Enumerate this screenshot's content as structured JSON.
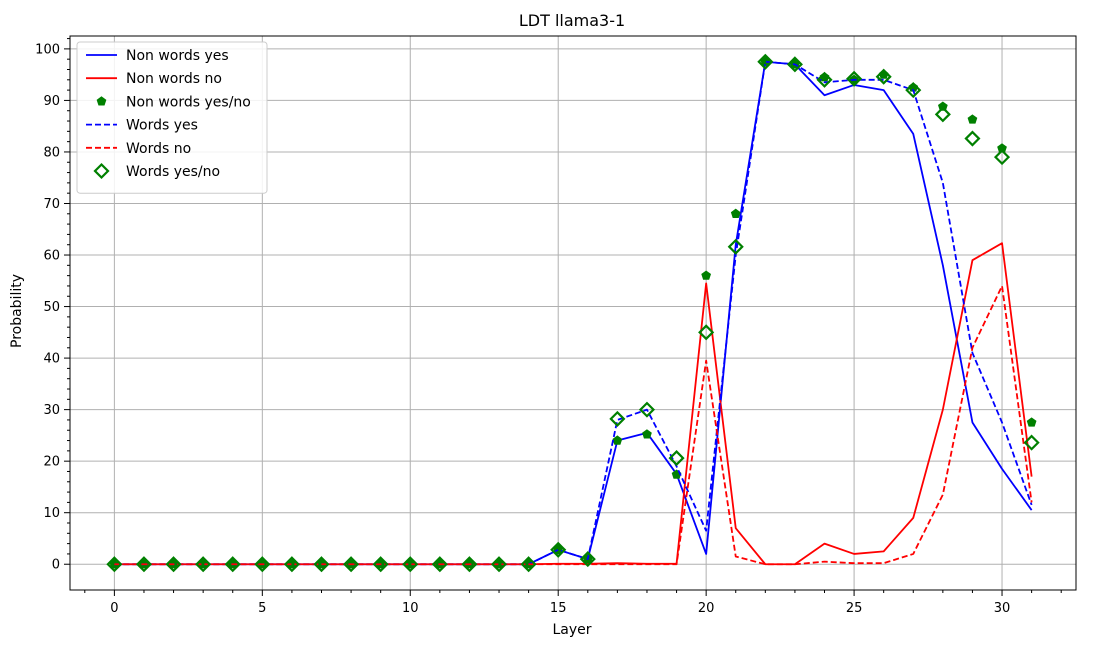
{
  "chart_data": {
    "type": "line",
    "title": "LDT llama3-1",
    "xlabel": "Layer",
    "ylabel": "Probability",
    "xlim": [
      -1.5,
      32.5
    ],
    "ylim": [
      -5,
      102.5
    ],
    "xticks": [
      0,
      5,
      10,
      15,
      20,
      25,
      30
    ],
    "yticks": [
      0,
      10,
      20,
      30,
      40,
      50,
      60,
      70,
      80,
      90,
      100
    ],
    "grid": true,
    "legend_position": "top-left",
    "x": [
      0,
      1,
      2,
      3,
      4,
      5,
      6,
      7,
      8,
      9,
      10,
      11,
      12,
      13,
      14,
      15,
      16,
      17,
      18,
      19,
      20,
      21,
      22,
      23,
      24,
      25,
      26,
      27,
      28,
      29,
      30,
      31
    ],
    "series": [
      {
        "name": "Non words yes",
        "style": "solid",
        "color": "#0000ff",
        "marker": "none",
        "values": [
          0,
          0,
          0,
          0,
          0,
          0,
          0,
          0,
          0,
          0,
          0,
          0,
          0,
          0,
          0,
          2.8,
          1.0,
          24,
          25.5,
          17.5,
          2,
          62,
          97.5,
          97,
          91,
          93,
          92,
          83.5,
          58,
          27.5,
          18.5,
          10.5
        ]
      },
      {
        "name": "Non words no",
        "style": "solid",
        "color": "#ff0000",
        "marker": "none",
        "values": [
          0,
          0,
          0,
          0,
          0,
          0,
          0,
          0,
          0,
          0,
          0,
          0,
          0,
          0,
          0,
          0.1,
          0.1,
          0.2,
          0.1,
          0.1,
          54.5,
          7,
          0,
          0,
          4,
          2,
          2.5,
          9,
          30,
          59,
          62.3,
          17
        ]
      },
      {
        "name": "Non words yes/no",
        "style": "none",
        "color": "#008000",
        "marker": "pentagon",
        "values": [
          0,
          0,
          0,
          0,
          0,
          0,
          0,
          0,
          0,
          0,
          0,
          0,
          0,
          0,
          0,
          2.8,
          1.0,
          24,
          25.2,
          17.4,
          56,
          68,
          97.5,
          97,
          94.5,
          94,
          95,
          92.5,
          88.8,
          86.3,
          80.7,
          27.5
        ]
      },
      {
        "name": "Words yes",
        "style": "dashed",
        "color": "#0000ff",
        "marker": "none",
        "values": [
          0,
          0,
          0,
          0,
          0,
          0,
          0,
          0,
          0,
          0,
          0,
          0,
          0,
          0,
          0,
          2.8,
          1.0,
          28,
          30,
          19,
          6.5,
          60,
          97.5,
          97,
          93.5,
          94,
          94,
          92,
          74,
          41,
          27.5,
          11.5
        ]
      },
      {
        "name": "Words no",
        "style": "dashed",
        "color": "#ff0000",
        "marker": "none",
        "values": [
          0,
          0,
          0,
          0,
          0,
          0,
          0,
          0,
          0,
          0,
          0,
          0,
          0,
          0,
          0,
          0,
          0,
          0,
          0,
          0,
          39.5,
          1.5,
          0,
          0,
          0.5,
          0.2,
          0.2,
          2,
          13.5,
          42,
          54,
          12
        ]
      },
      {
        "name": "Words yes/no",
        "style": "none",
        "color": "#008000",
        "marker": "diamond-open",
        "values": [
          0,
          0,
          0,
          0,
          0,
          0,
          0,
          0,
          0,
          0,
          0,
          0,
          0,
          0,
          0,
          2.8,
          1.0,
          28.2,
          30,
          20.6,
          45,
          61.6,
          97.5,
          97,
          94,
          94.2,
          94.6,
          92,
          87.3,
          82.6,
          79,
          23.6
        ]
      }
    ]
  }
}
